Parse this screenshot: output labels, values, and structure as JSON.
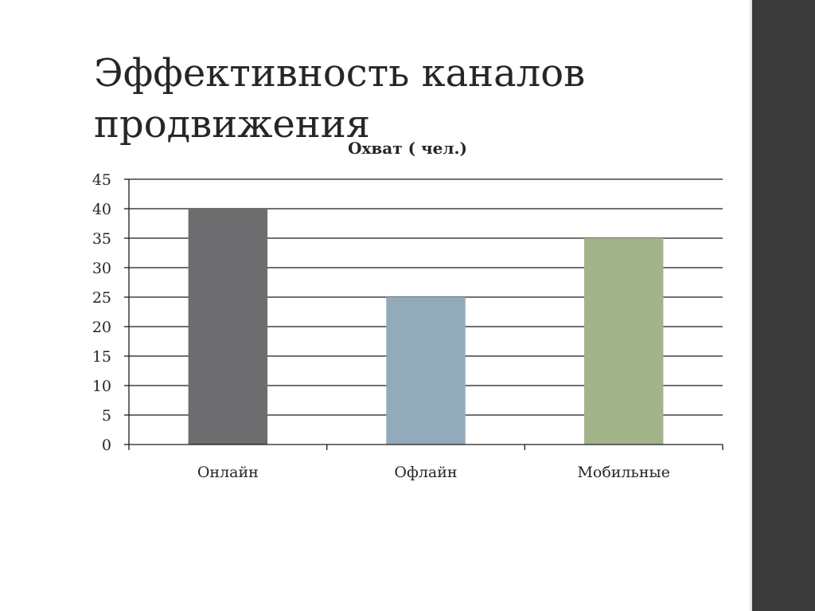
{
  "slide": {
    "title": "Эффективность каналов продвижения"
  },
  "colors": {
    "sidebar": "#3a3a3b",
    "text": "#262626",
    "gridline": "#1a1a1a"
  },
  "chart_data": {
    "type": "bar",
    "title": "Охват ( чел.)",
    "xlabel": "",
    "ylabel": "",
    "categories": [
      "Онлайн",
      "Офлайн",
      "Мобильные"
    ],
    "values": [
      40,
      25,
      35
    ],
    "bar_colors": [
      "#6d6d70",
      "#93aabb",
      "#a3b48a"
    ],
    "ylim": [
      0,
      45
    ],
    "ytick_step": 5,
    "grid": true,
    "legend": "none"
  }
}
